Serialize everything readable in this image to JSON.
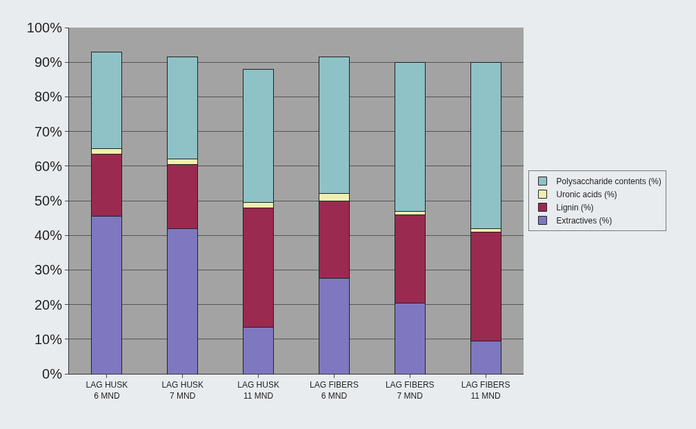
{
  "chart_data": {
    "type": "bar",
    "stacked": true,
    "categories": [
      "LAG HUSK\n6 MND",
      "LAG HUSK\n7 MND",
      "LAG HUSK\n11 MND",
      "LAG FIBERS\n6 MND",
      "LAG FIBERS\n7 MND",
      "LAG FIBERS\n11 MND"
    ],
    "series": [
      {
        "name": "Extractives (%)",
        "color": "#7f78c0",
        "values": [
          45.5,
          42,
          13.5,
          27.5,
          20.5,
          9.5
        ]
      },
      {
        "name": "Lignin (%)",
        "color": "#9a2a50",
        "values": [
          18,
          18.5,
          34.5,
          22.5,
          25.5,
          31.5
        ]
      },
      {
        "name": "Uronic acids (%)",
        "color": "#eef0b0",
        "values": [
          1.5,
          1.5,
          1.5,
          2,
          1,
          1
        ]
      },
      {
        "name": "Polysaccharide contents (%)",
        "color": "#8ec2c6",
        "values": [
          28,
          29.5,
          38.5,
          39.5,
          43,
          48
        ]
      }
    ],
    "ylim": [
      0,
      100
    ],
    "yticks": [
      {
        "value": 0,
        "label": "0%"
      },
      {
        "value": 10,
        "label": "10%"
      },
      {
        "value": 20,
        "label": "20%"
      },
      {
        "value": 30,
        "label": "30%"
      },
      {
        "value": 40,
        "label": "40%"
      },
      {
        "value": 50,
        "label": "50%"
      },
      {
        "value": 60,
        "label": "60%"
      },
      {
        "value": 70,
        "label": "70%"
      },
      {
        "value": 80,
        "label": "80%"
      },
      {
        "value": 90,
        "label": "90%"
      },
      {
        "value": 100,
        "label": "100%"
      }
    ],
    "grid": "y",
    "legend": "right"
  }
}
